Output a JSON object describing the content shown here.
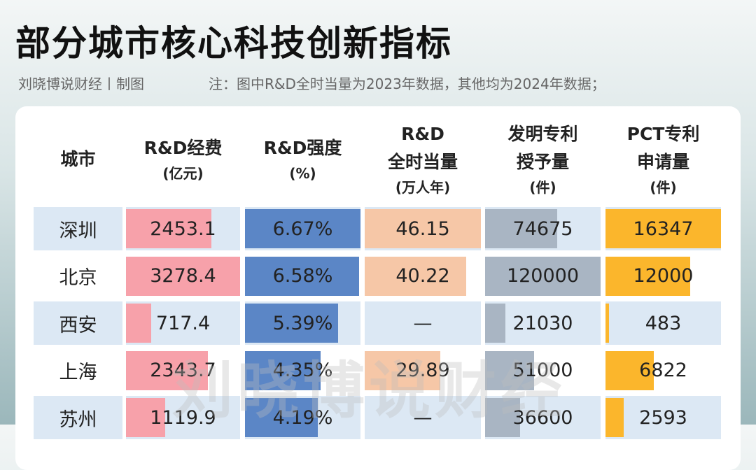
{
  "header": {
    "title": "部分城市核心科技创新指标",
    "source": "刘晓博说财经丨制图",
    "note": "注：图中R&D全时当量为2023年数据，其他均为2024年数据；"
  },
  "watermark": "刘晓博说财经",
  "table": {
    "columns": [
      [
        "城市"
      ],
      [
        "R&D经费",
        "(亿元)"
      ],
      [
        "R&D强度",
        "(%)"
      ],
      [
        "R&D",
        "全时当量",
        "(万人年)"
      ],
      [
        "发明专利",
        "授予量",
        "(件)"
      ],
      [
        "PCT专利",
        "申请量",
        "(件)"
      ]
    ],
    "rows": [
      {
        "city": "深圳",
        "cells": [
          2453.1,
          {
            "value": 6.67,
            "label": "6.67%"
          },
          46.15,
          74675,
          16347
        ]
      },
      {
        "city": "北京",
        "cells": [
          3278.4,
          {
            "value": 6.58,
            "label": "6.58%"
          },
          40.22,
          120000,
          12000
        ]
      },
      {
        "city": "西安",
        "cells": [
          717.4,
          {
            "value": 5.39,
            "label": "5.39%"
          },
          "—",
          21030,
          483
        ]
      },
      {
        "city": "上海",
        "cells": [
          2343.7,
          {
            "value": 4.35,
            "label": "4.35%"
          },
          29.89,
          51000,
          6822
        ]
      },
      {
        "city": "苏州",
        "cells": [
          1119.9,
          {
            "value": 4.19,
            "label": "4.19%"
          },
          "—",
          36600,
          2593
        ]
      }
    ]
  }
}
